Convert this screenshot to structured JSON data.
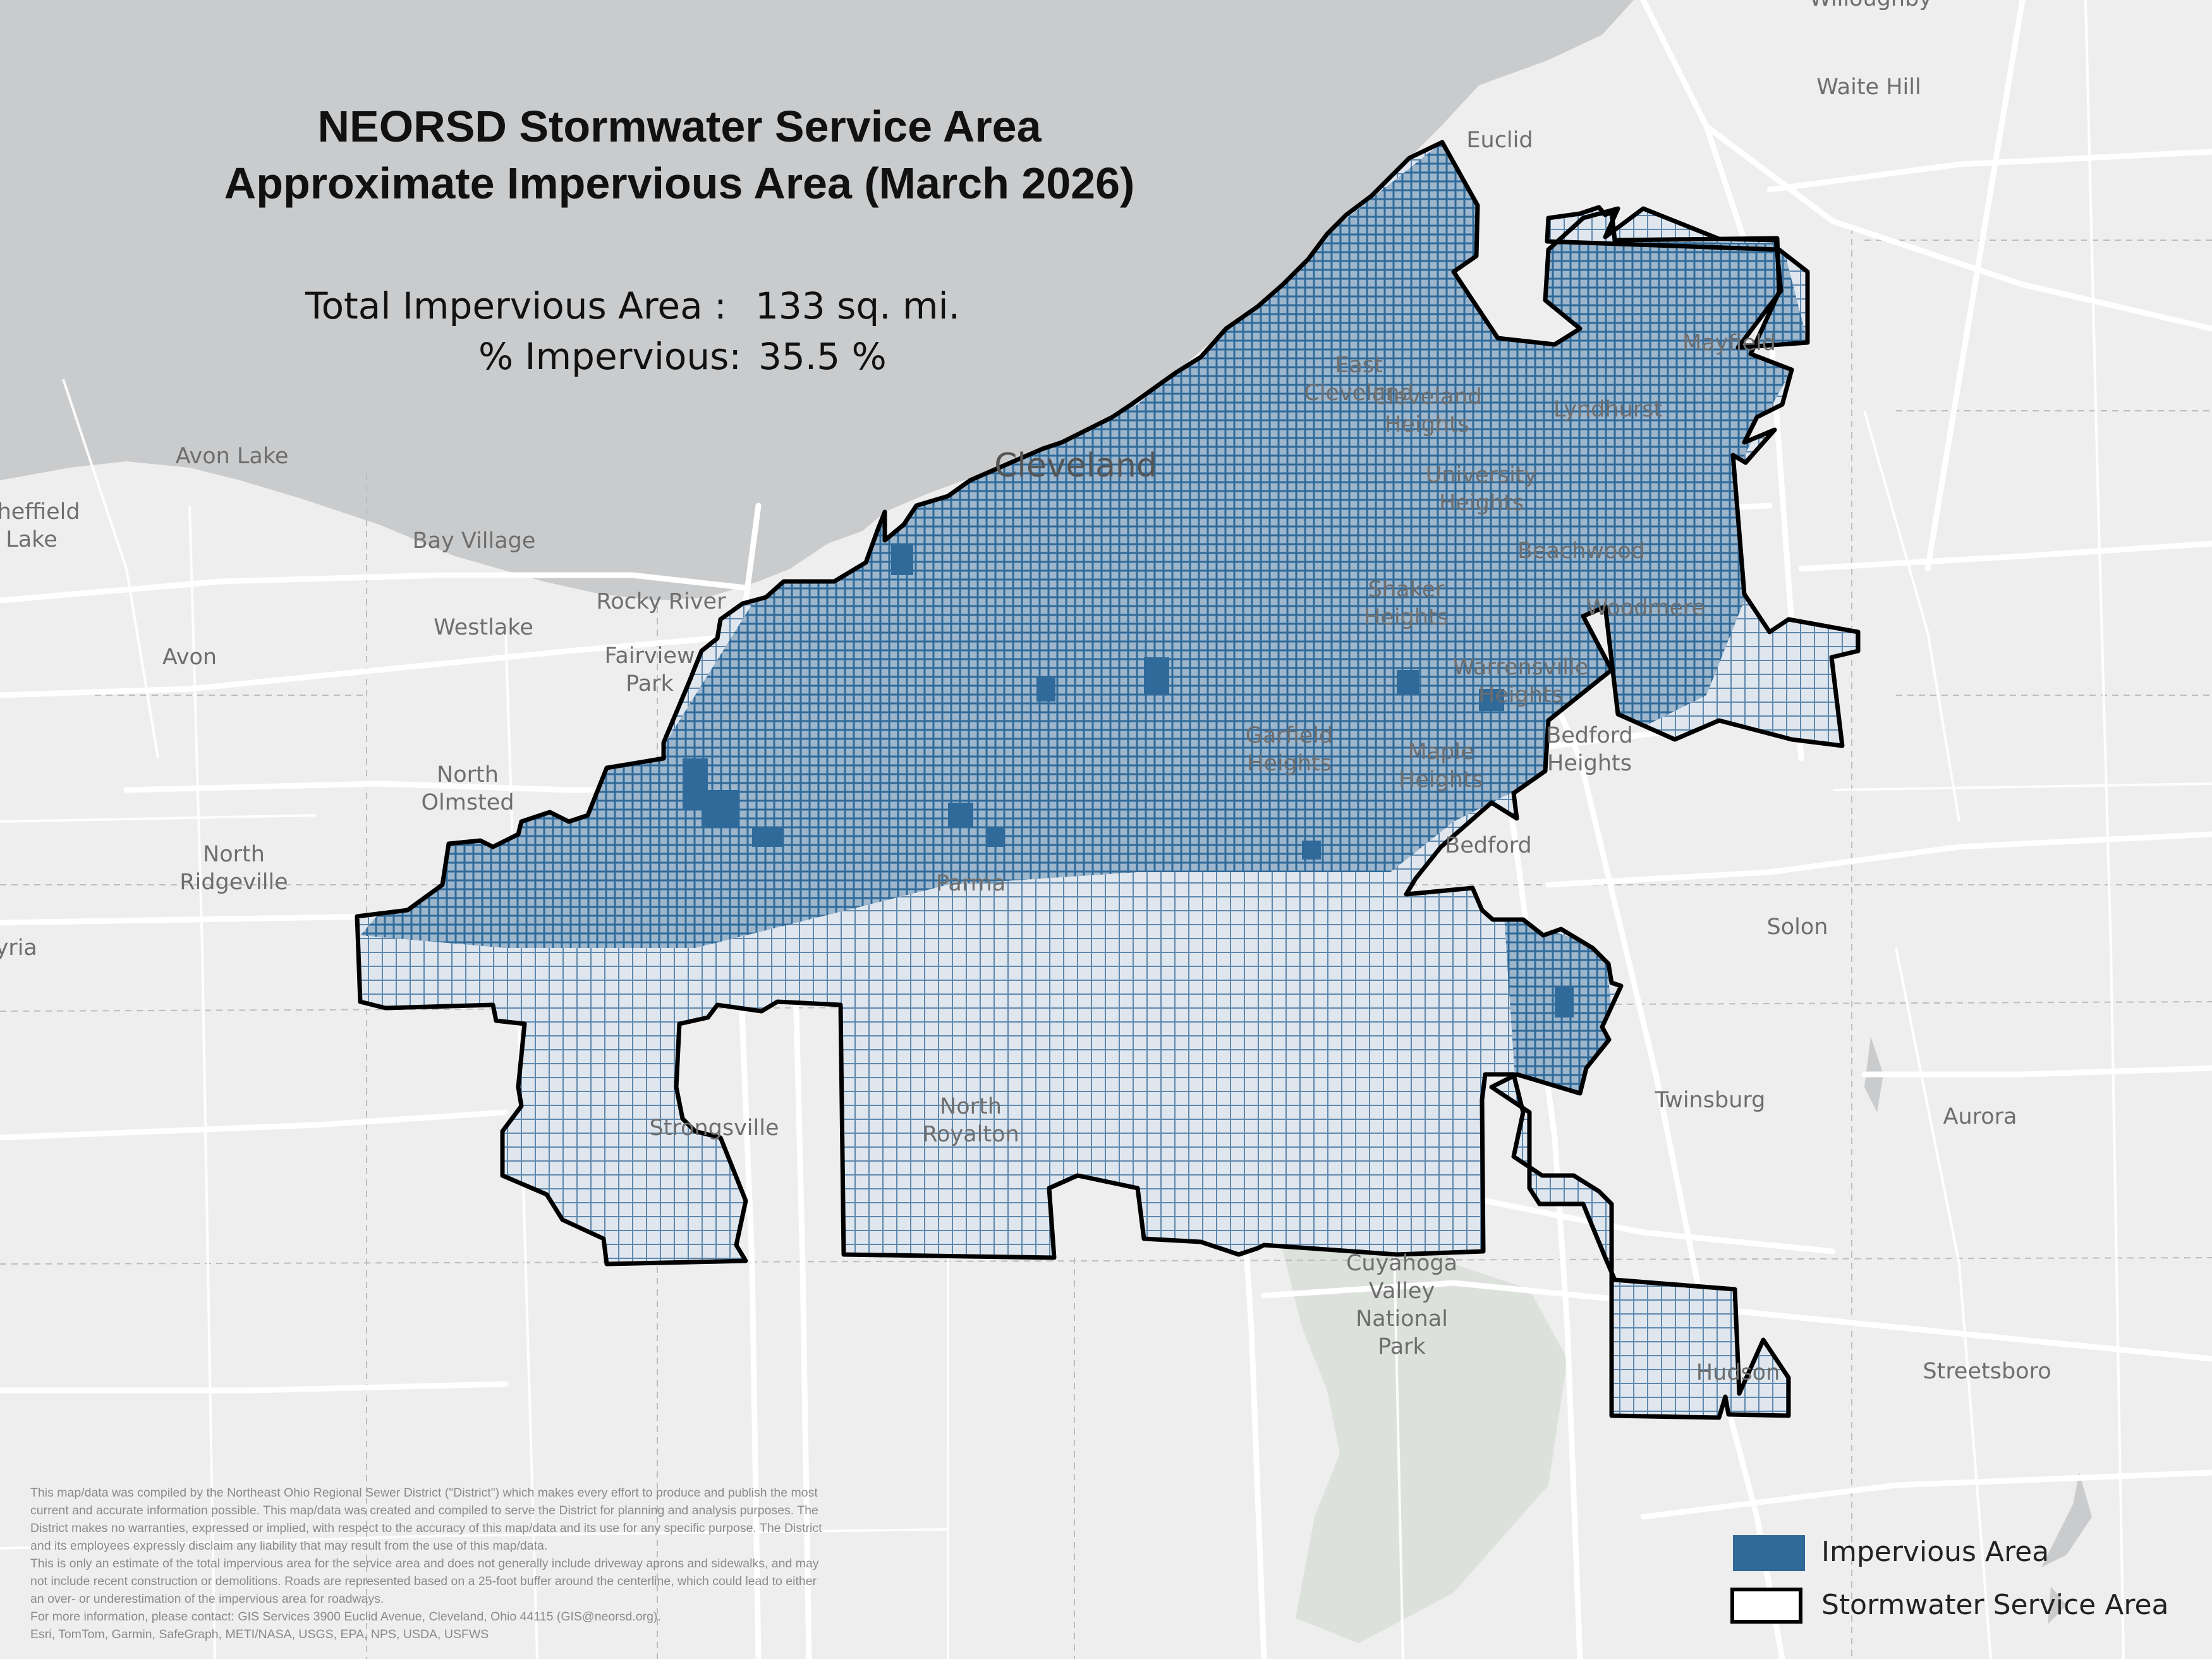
{
  "title": {
    "line1": "NEORSD Stormwater Service Area",
    "line2": "Approximate Impervious Area (March 2026)"
  },
  "stats": {
    "total_label": "Total Impervious Area :",
    "total_value": "133 sq. mi.",
    "percent_label": "% Impervious:",
    "percent_value": "35.5 %"
  },
  "places": [
    {
      "name": "Willoughby"
    },
    {
      "name": "Waite Hill"
    },
    {
      "name": "Euclid"
    },
    {
      "name": "Mayfield"
    },
    {
      "name": "East\nCleveland"
    },
    {
      "name": "Cleveland\nHeights"
    },
    {
      "name": "Lyndhurst"
    },
    {
      "name": "Cleveland"
    },
    {
      "name": "University\nHeights"
    },
    {
      "name": "Beachwood"
    },
    {
      "name": "Avon Lake"
    },
    {
      "name": "Sheffield\nLake"
    },
    {
      "name": "Bay Village"
    },
    {
      "name": "Rocky River"
    },
    {
      "name": "Westlake"
    },
    {
      "name": "Shaker\nHeights"
    },
    {
      "name": "Woodmere"
    },
    {
      "name": "Avon"
    },
    {
      "name": "Fairview\nPark"
    },
    {
      "name": "Warrensville\nHeights"
    },
    {
      "name": "Garfield\nHeights"
    },
    {
      "name": "Maple\nHeights"
    },
    {
      "name": "Bedford\nHeights"
    },
    {
      "name": "North\nOlmsted"
    },
    {
      "name": "Bedford"
    },
    {
      "name": "North\nRidgeville"
    },
    {
      "name": "Parma"
    },
    {
      "name": "Solon"
    },
    {
      "name": "Elyria"
    },
    {
      "name": "Twinsburg"
    },
    {
      "name": "Aurora"
    },
    {
      "name": "North\nRoyalton"
    },
    {
      "name": "Strongsville"
    },
    {
      "name": "Cuyahoga\nValley\nNational\nPark"
    },
    {
      "name": "Streetsboro"
    },
    {
      "name": "Hudson"
    }
  ],
  "legend": {
    "impervious_label": "Impervious Area",
    "service_area_label": "Stormwater Service Area"
  },
  "disclaimer": {
    "lines": [
      "This map/data was compiled by the Northeast Ohio Regional Sewer District (\"District\") which makes every effort to produce and publish the most",
      "current and accurate information possible.  This map/data was created and compiled to serve the District for planning and analysis purposes.  The",
      "District makes no warranties, expressed or implied, with respect to the accuracy of this map/data and its use for any specific purpose.  The District",
      "and its employees expressly disclaim any liability that may result from the use of this map/data.",
      "This is only an estimate of the total impervious area for the service area and does not generally include driveway aprons and sidewalks, and may",
      "not include recent construction or demolitions. Roads are represented based on a 25-foot buffer around the centerline, which could lead to either",
      "an over- or underestimation of the impervious area for roadways.",
      "For more information, please contact:  GIS Services 3900 Euclid Avenue, Cleveland, Ohio 44115 (GIS@neorsd.org)."
    ],
    "credits": "Esri, TomTom, Garmin, SafeGraph, METI/NASA, USGS, EPA, NPS, USDA, USFWS"
  },
  "colors": {
    "water": "#c9cbcd",
    "land": "#eeeeee",
    "roads": "#ffffff",
    "impervious": "#2f6a9a",
    "boundary": "#000000",
    "park": "#dde1dc"
  }
}
